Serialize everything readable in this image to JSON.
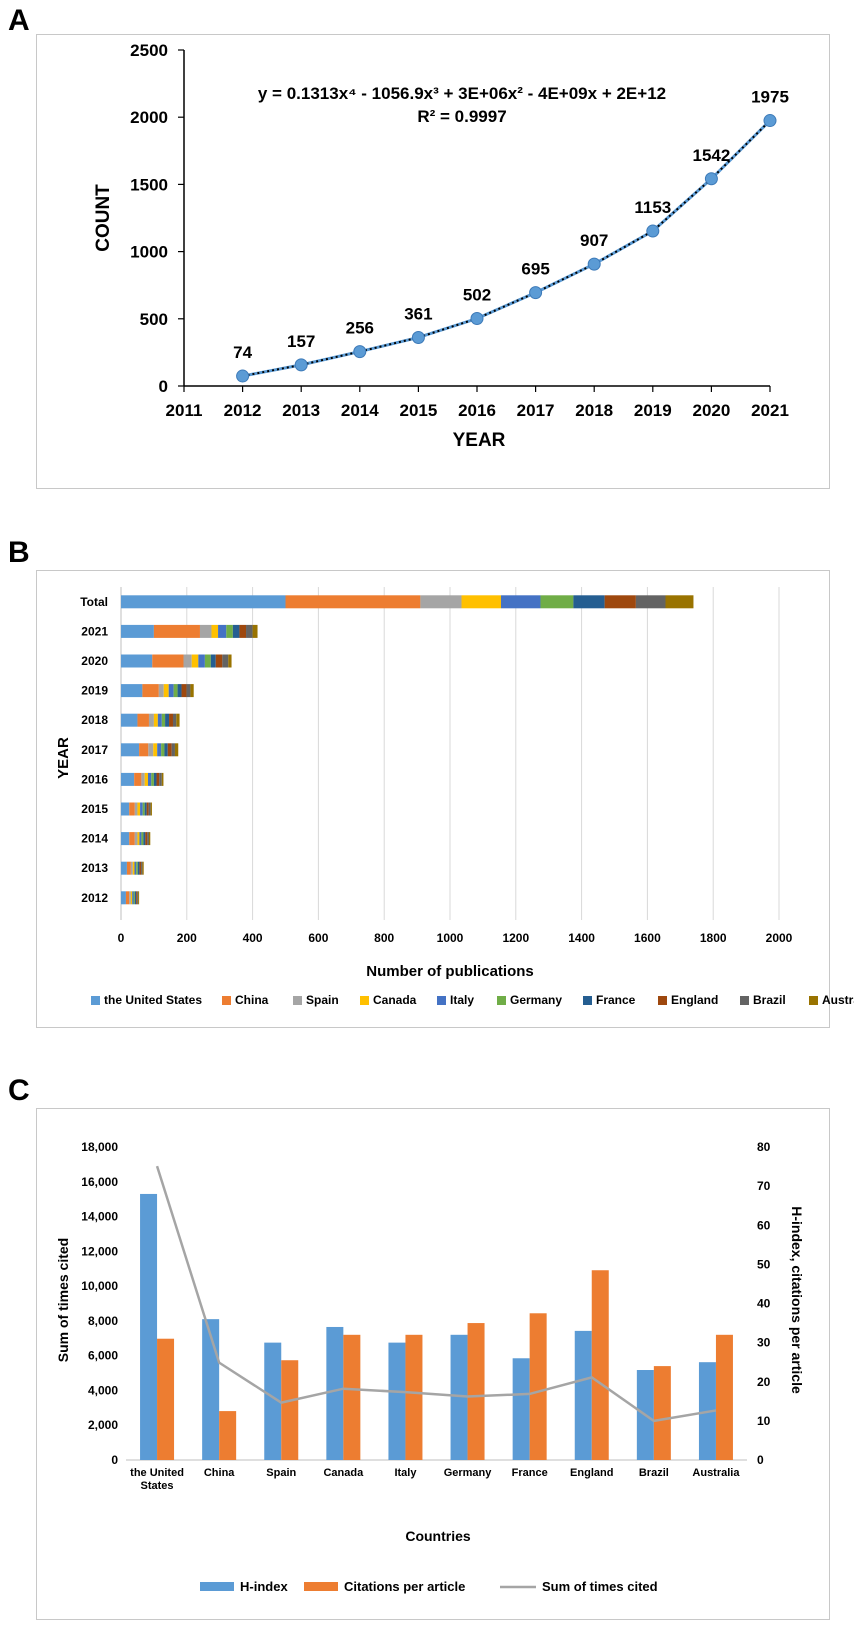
{
  "panels": {
    "a": {
      "letter": "A",
      "chart_data": {
        "type": "line",
        "title": "",
        "xlabel": "YEAR",
        "ylabel": "COUNT",
        "x_ticks": [
          "2011",
          "2012",
          "2013",
          "2014",
          "2015",
          "2016",
          "2017",
          "2018",
          "2019",
          "2020",
          "2021"
        ],
        "y_ticks": [
          "0",
          "500",
          "1000",
          "1500",
          "2000",
          "2500"
        ],
        "xlim": [
          2011,
          2021
        ],
        "ylim": [
          0,
          2500
        ],
        "x": [
          2012,
          2013,
          2014,
          2015,
          2016,
          2017,
          2018,
          2019,
          2020,
          2021
        ],
        "values": [
          74,
          157,
          256,
          361,
          502,
          695,
          907,
          1153,
          1542,
          1975
        ],
        "data_labels": [
          "74",
          "157",
          "256",
          "361",
          "502",
          "695",
          "907",
          "1153",
          "1542",
          "1975"
        ],
        "trendline": "polynomial order 4",
        "equation": "y = 0.1313x⁴ - 1056.9x³ + 3E+06x² - 4E+09x + 2E+12",
        "r_squared": "R² = 0.9997",
        "colors": {
          "line": "#5b9bd5",
          "marker": "#5b9bd5",
          "trend": "#000000"
        }
      }
    },
    "b": {
      "letter": "B",
      "chart_data": {
        "type": "bar",
        "orientation": "horizontal",
        "stacked": true,
        "xlabel": "Number of  publications",
        "ylabel": "YEAR",
        "x_ticks": [
          "0",
          "200",
          "400",
          "600",
          "800",
          "1000",
          "1200",
          "1400",
          "1600",
          "1800",
          "2000"
        ],
        "xlim": [
          0,
          2000
        ],
        "grid": true,
        "legend_position": "bottom",
        "categories": [
          "Total",
          "2021",
          "2020",
          "2019",
          "2018",
          "2017",
          "2016",
          "2015",
          "2014",
          "2013",
          "2012"
        ],
        "series": [
          {
            "name": "the United States",
            "color": "#5b9bd5",
            "values": [
              500,
              100,
              95,
              65,
              50,
              55,
              40,
              25,
              25,
              18,
              15
            ]
          },
          {
            "name": "China",
            "color": "#ed7d31",
            "values": [
              410,
              140,
              95,
              50,
              35,
              28,
              22,
              17,
              17,
              12,
              10
            ]
          },
          {
            "name": "Spain",
            "color": "#a5a5a5",
            "values": [
              125,
              35,
              25,
              15,
              15,
              15,
              10,
              8,
              8,
              6,
              5
            ]
          },
          {
            "name": "Canada",
            "color": "#ffc000",
            "values": [
              120,
              20,
              20,
              15,
              12,
              12,
              10,
              8,
              6,
              5,
              4
            ]
          },
          {
            "name": "Italy",
            "color": "#4472c4",
            "values": [
              120,
              25,
              20,
              15,
              12,
              12,
              10,
              8,
              6,
              5,
              4
            ]
          },
          {
            "name": "Germany",
            "color": "#70ad47",
            "values": [
              100,
              20,
              18,
              12,
              10,
              10,
              8,
              6,
              6,
              5,
              4
            ]
          },
          {
            "name": "France",
            "color": "#255e91",
            "values": [
              95,
              20,
              15,
              12,
              12,
              10,
              8,
              6,
              6,
              5,
              4
            ]
          },
          {
            "name": "England",
            "color": "#9e480e",
            "values": [
              95,
              20,
              20,
              15,
              12,
              12,
              8,
              6,
              6,
              5,
              3
            ]
          },
          {
            "name": "Brazil",
            "color": "#636363",
            "values": [
              90,
              20,
              18,
              12,
              10,
              10,
              8,
              6,
              5,
              4,
              3
            ]
          },
          {
            "name": "Australia",
            "color": "#997300",
            "values": [
              85,
              15,
              10,
              10,
              10,
              10,
              5,
              4,
              4,
              4,
              3
            ]
          }
        ]
      }
    },
    "c": {
      "letter": "C",
      "chart_data": {
        "type": "bar",
        "combo": "bar + line (secondary axis)",
        "xlabel": "Countries",
        "ylabel": "Sum of times cited",
        "y2label": "H-index, citations per article",
        "categories": [
          "the United States",
          "China",
          "Spain",
          "Canada",
          "Italy",
          "Germany",
          "France",
          "England",
          "Brazil",
          "Australia"
        ],
        "category_labels": [
          [
            "the United",
            "States"
          ],
          [
            "China"
          ],
          [
            "Spain"
          ],
          [
            "Canada"
          ],
          [
            "Italy"
          ],
          [
            "Germany"
          ],
          [
            "France"
          ],
          [
            "England"
          ],
          [
            "Brazil"
          ],
          [
            "Australia"
          ]
        ],
        "y_ticks": [
          "0",
          "2,000",
          "4,000",
          "6,000",
          "8,000",
          "10,000",
          "12,000",
          "14,000",
          "16,000",
          "18,000"
        ],
        "y2_ticks": [
          "0",
          "10",
          "20",
          "30",
          "40",
          "50",
          "60",
          "70",
          "80"
        ],
        "ylim": [
          0,
          18000
        ],
        "y2lim": [
          0,
          80
        ],
        "legend_position": "bottom",
        "series": [
          {
            "name": "H-index",
            "axis": "secondary",
            "color": "#5b9bd5",
            "values": [
              68,
              36,
              30,
              34,
              30,
              32,
              26,
              33,
              23,
              25
            ]
          },
          {
            "name": "Citations per article",
            "axis": "secondary",
            "color": "#ed7d31",
            "values": [
              31,
              12.5,
              25.5,
              32,
              32,
              35,
              37.5,
              48.5,
              24,
              32
            ]
          },
          {
            "name": "Sum of times cited",
            "axis": "primary",
            "type": "line",
            "color": "#a5a5a5",
            "values": [
              16900,
              5600,
              3300,
              4100,
              3900,
              3650,
              3800,
              4750,
              2250,
              2850
            ]
          }
        ]
      }
    }
  }
}
